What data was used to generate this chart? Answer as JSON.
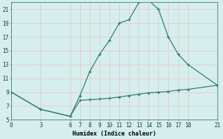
{
  "xlabel": "Humidex (Indice chaleur)",
  "background_color": "#d6eeee",
  "grid_color": "#c8e0dc",
  "line_color": "#2e7d6e",
  "xlim": [
    0,
    21
  ],
  "ylim": [
    5,
    22
  ],
  "xticks": [
    0,
    3,
    6,
    7,
    8,
    9,
    10,
    11,
    12,
    13,
    14,
    15,
    16,
    17,
    18,
    21
  ],
  "yticks": [
    5,
    7,
    9,
    11,
    13,
    15,
    17,
    19,
    21
  ],
  "line1_x": [
    0,
    3,
    6,
    7,
    8,
    9,
    10,
    11,
    12,
    13,
    14,
    15,
    16,
    17,
    18,
    21
  ],
  "line1_y": [
    9,
    6.5,
    5.5,
    8.5,
    12.0,
    14.5,
    16.5,
    19.0,
    19.5,
    22.0,
    22.3,
    21.0,
    17.0,
    14.5,
    13.0,
    10.0
  ],
  "line2_x": [
    0,
    3,
    6,
    7,
    8,
    9,
    10,
    11,
    12,
    13,
    14,
    15,
    16,
    17,
    18,
    21
  ],
  "line2_y": [
    9.0,
    6.5,
    5.5,
    7.8,
    7.9,
    8.0,
    8.1,
    8.3,
    8.5,
    8.7,
    8.9,
    9.0,
    9.1,
    9.3,
    9.4,
    10.0
  ],
  "tick_fontsize": 5.5,
  "xlabel_fontsize": 6.0
}
